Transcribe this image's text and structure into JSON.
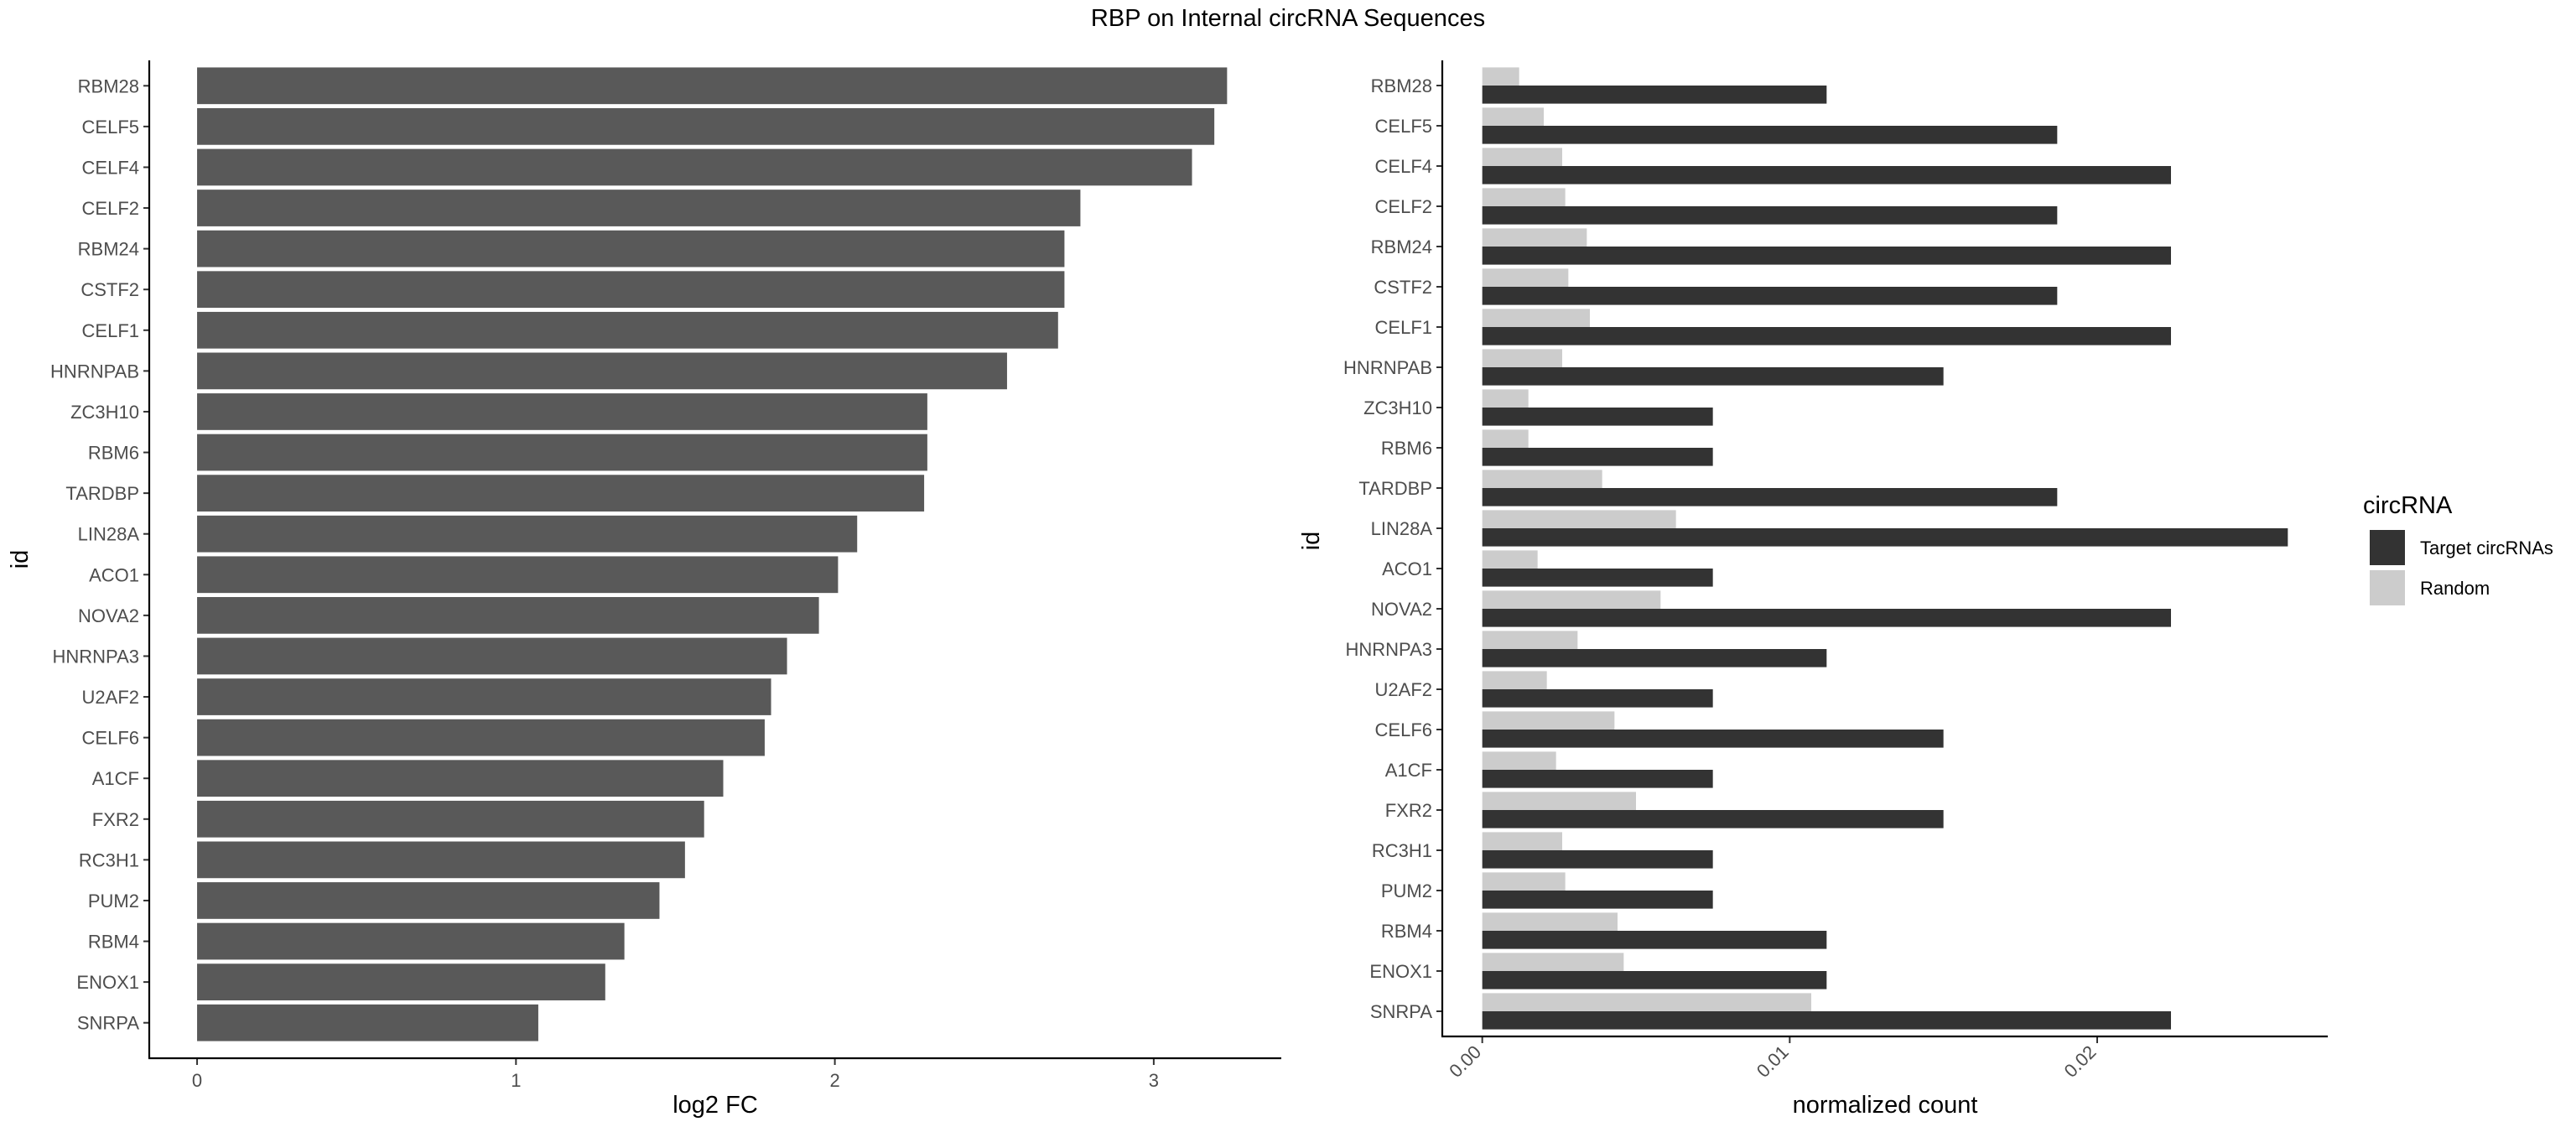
{
  "figure": {
    "title": "RBP on Internal circRNA Sequences"
  },
  "chart_data": [
    {
      "type": "bar",
      "orientation": "horizontal",
      "categories": [
        "RBM28",
        "CELF5",
        "CELF4",
        "CELF2",
        "RBM24",
        "CSTF2",
        "CELF1",
        "HNRNPAB",
        "ZC3H10",
        "RBM6",
        "TARDBP",
        "LIN28A",
        "ACO1",
        "NOVA2",
        "HNRNPA3",
        "U2AF2",
        "CELF6",
        "A1CF",
        "FXR2",
        "RC3H1",
        "PUM2",
        "RBM4",
        "ENOX1",
        "SNRPA"
      ],
      "values": [
        3.23,
        3.19,
        3.12,
        2.77,
        2.72,
        2.72,
        2.7,
        2.54,
        2.29,
        2.29,
        2.28,
        2.07,
        2.01,
        1.95,
        1.85,
        1.8,
        1.78,
        1.65,
        1.59,
        1.53,
        1.45,
        1.34,
        1.28,
        1.07
      ],
      "xlabel": "log2 FC",
      "ylabel": "id",
      "xlim": [
        -0.15,
        3.4
      ],
      "xticks": [
        "0",
        "1",
        "2",
        "3"
      ],
      "bar_color": "#595959",
      "grid": false
    },
    {
      "type": "bar",
      "orientation": "horizontal",
      "grouped": true,
      "categories": [
        "RBM28",
        "CELF5",
        "CELF4",
        "CELF2",
        "RBM24",
        "CSTF2",
        "CELF1",
        "HNRNPAB",
        "ZC3H10",
        "RBM6",
        "TARDBP",
        "LIN28A",
        "ACO1",
        "NOVA2",
        "HNRNPA3",
        "U2AF2",
        "CELF6",
        "A1CF",
        "FXR2",
        "RC3H1",
        "PUM2",
        "RBM4",
        "ENOX1",
        "SNRPA"
      ],
      "series": [
        {
          "name": "Target circRNAs",
          "color": "#333333",
          "values": [
            0.0112,
            0.0187,
            0.0224,
            0.0187,
            0.0224,
            0.0187,
            0.0224,
            0.015,
            0.0075,
            0.0075,
            0.0187,
            0.0262,
            0.0075,
            0.0224,
            0.0112,
            0.0075,
            0.015,
            0.0075,
            0.015,
            0.0075,
            0.0075,
            0.0112,
            0.0112,
            0.0224
          ]
        },
        {
          "name": "Random",
          "color": "#cccccc",
          "values": [
            0.0012,
            0.002,
            0.0026,
            0.0027,
            0.0034,
            0.0028,
            0.0035,
            0.0026,
            0.0015,
            0.0015,
            0.0039,
            0.0063,
            0.0018,
            0.0058,
            0.0031,
            0.0021,
            0.0043,
            0.0024,
            0.005,
            0.0026,
            0.0027,
            0.0044,
            0.0046,
            0.0107
          ]
        }
      ],
      "xlabel": "normalized count",
      "ylabel": "id",
      "xlim": [
        -0.0013,
        0.0275
      ],
      "xticks": [
        "0.00",
        "0.01",
        "0.02"
      ],
      "legend": {
        "title": "circRNA",
        "position": "right"
      },
      "grid": false
    }
  ]
}
